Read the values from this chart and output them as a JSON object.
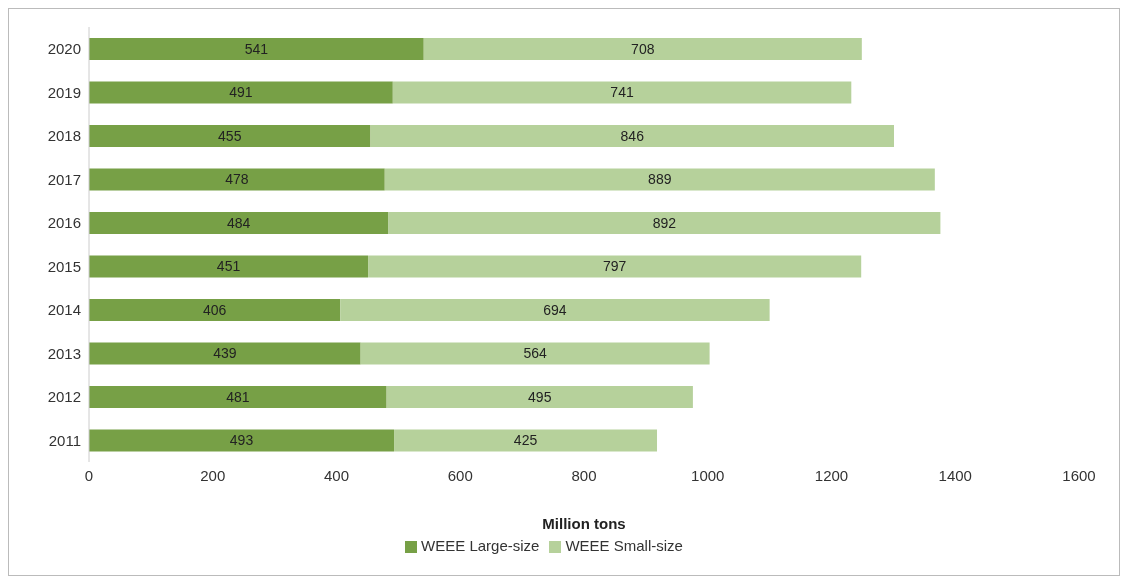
{
  "chart_data": {
    "type": "bar",
    "orientation": "horizontal",
    "stacked": true,
    "xlabel": "Million tons",
    "categories": [
      "2020",
      "2019",
      "2018",
      "2017",
      "2016",
      "2015",
      "2014",
      "2013",
      "2012",
      "2011"
    ],
    "series": [
      {
        "name": "WEEE Large-size",
        "color": "#77a046",
        "values": [
          541,
          491,
          455,
          478,
          484,
          451,
          406,
          439,
          481,
          493
        ]
      },
      {
        "name": "WEEE Small-size",
        "color": "#b6d19b",
        "values": [
          708,
          741,
          846,
          889,
          892,
          797,
          694,
          564,
          495,
          425
        ]
      }
    ],
    "xlim": [
      0,
      1600
    ],
    "xticks": [
      0,
      200,
      400,
      600,
      800,
      1000,
      1200,
      1400,
      1600
    ],
    "grid": false,
    "legend": "bottom",
    "data_labels": true
  }
}
